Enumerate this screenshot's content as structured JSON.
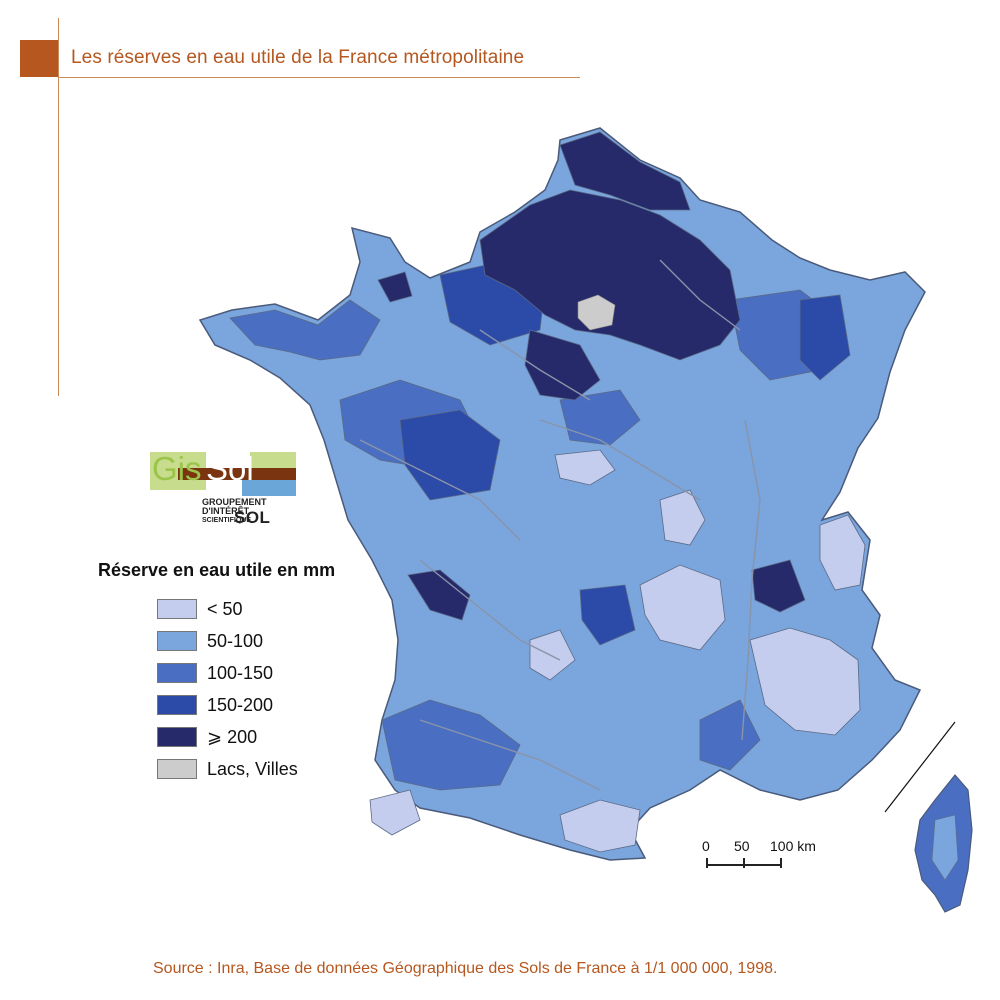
{
  "header": {
    "title": "Les réserves en eau utile de la France métropolitaine"
  },
  "logo": {
    "word_1": "Gis",
    "word_2": "Sol",
    "sub_line_1": "GROUPEMENT",
    "sub_line_2": "D'INTÉRÊT",
    "sub_line_3": "SCIENTIFIQUE",
    "sub_sol": "SOL"
  },
  "legend": {
    "title": "Réserve en eau utile en mm",
    "items": [
      {
        "label": "< 50",
        "color": "#c5cdee"
      },
      {
        "label": "50-100",
        "color": "#7aa5dd"
      },
      {
        "label": "100-150",
        "color": "#4a6fc2"
      },
      {
        "label": "150-200",
        "color": "#2c4aa8"
      },
      {
        "label": "⩾ 200",
        "color": "#262a6a"
      },
      {
        "label": "Lacs, Villes",
        "color": "#cccccc"
      }
    ]
  },
  "scale": {
    "label_0": "0",
    "label_50": "50",
    "label_100": "100 km"
  },
  "source": {
    "text": "Source : Inra, Base de données Géographique des Sols de France à 1/1 000 000, 1998."
  },
  "colors": {
    "accent": "#b5571f",
    "lt50": "#c5cdee",
    "r50_100": "#7aa5dd",
    "r100_150": "#4a6fc2",
    "r150_200": "#2c4aa8",
    "ge200": "#262a6a",
    "lakes": "#cccccc",
    "border": "#5a6a86"
  }
}
